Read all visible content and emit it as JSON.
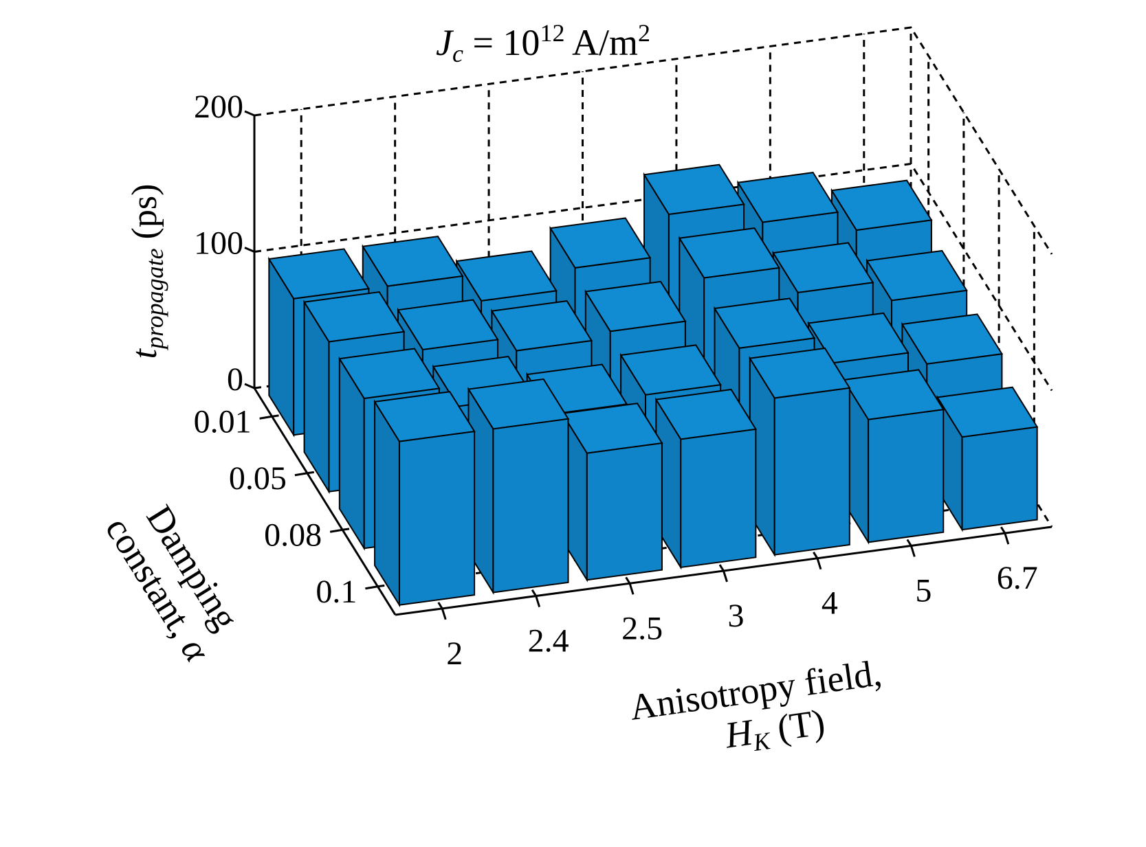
{
  "chart_data": {
    "type": "bar3d",
    "title": [
      "J",
      "c",
      " = 10",
      "12",
      " A/m",
      "2"
    ],
    "zlabel": [
      "t",
      "propagate",
      " (ps)"
    ],
    "xlabel": [
      "Anisotropy field,",
      "H",
      "K",
      " (T)"
    ],
    "ylabel": [
      "Damping",
      "constant, ",
      "α"
    ],
    "categories": [
      "2",
      "2.4",
      "2.5",
      "3",
      "4",
      "5",
      "6.7"
    ],
    "series": [
      {
        "name": "0.01",
        "color": "#1084c8",
        "values": [
          100,
          100,
          80,
          95,
          125,
          110,
          95
        ]
      },
      {
        "name": "0.05",
        "color": "#1084c8",
        "values": [
          110,
          95,
          85,
          90,
          120,
          100,
          85
        ]
      },
      {
        "name": "0.08",
        "color": "#1084c8",
        "values": [
          110,
          95,
          80,
          85,
          110,
          90,
          80
        ]
      },
      {
        "name": "0.1",
        "color": "#1084c8",
        "values": [
          120,
          120,
          93,
          94,
          115,
          90,
          68
        ]
      }
    ],
    "zlim": [
      0,
      200
    ],
    "zticks": [
      0,
      100,
      200
    ],
    "grid": true
  }
}
